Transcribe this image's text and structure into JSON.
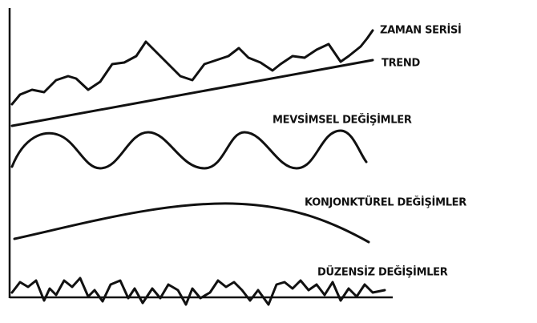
{
  "labels": [
    "ZAMAN SERİSİ",
    "TREND",
    "MEVSİMSEL DEĞİŞİMLER",
    "KONJONKTÜREL DEĞİŞİMLER",
    "DÜZENSİZ DEĞİŞİMLER"
  ]
}
